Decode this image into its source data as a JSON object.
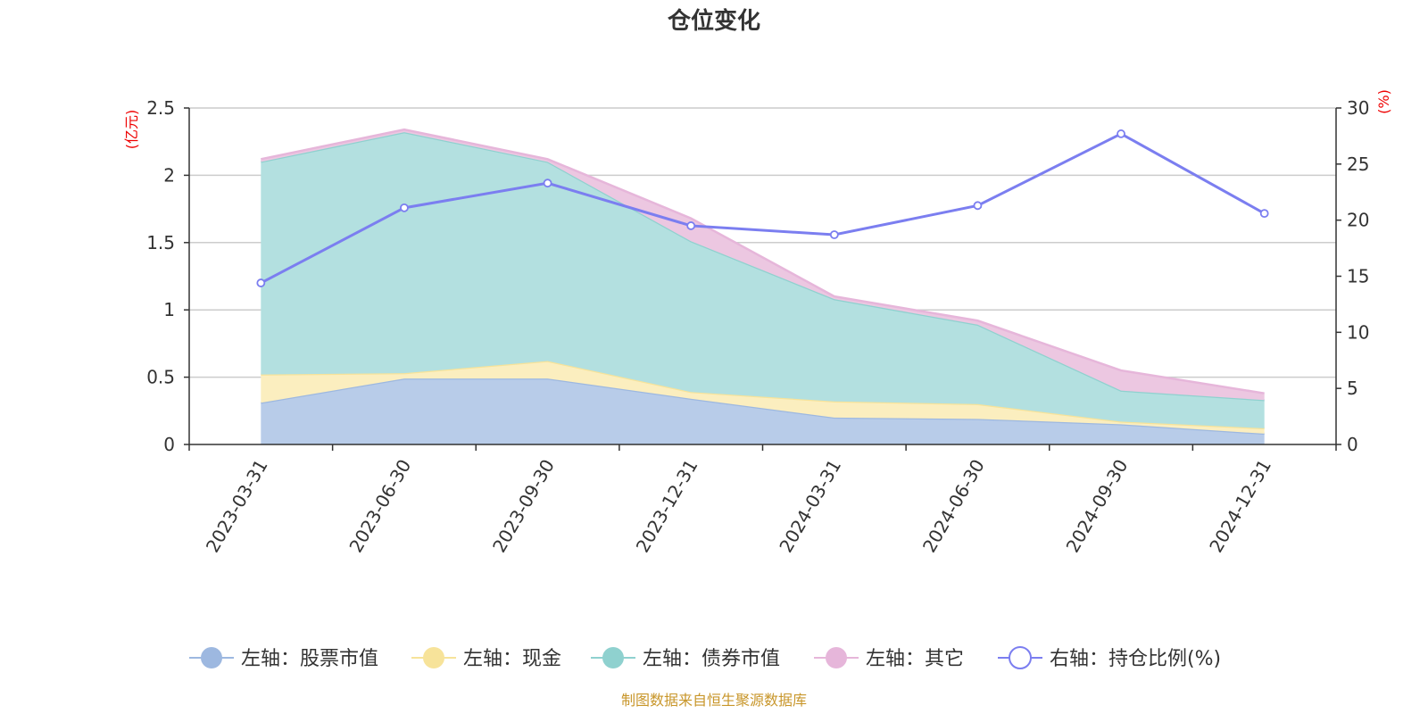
{
  "chart_data": {
    "type": "area",
    "title": "仓位变化",
    "categories": [
      "2023-03-31",
      "2023-06-30",
      "2023-09-30",
      "2023-12-31",
      "2024-03-31",
      "2024-06-30",
      "2024-09-30",
      "2024-12-31"
    ],
    "left_axis": {
      "unit": "(亿元)",
      "ylim": [
        0,
        2.5
      ],
      "ticks": [
        "0",
        "0.5",
        "1",
        "1.5",
        "2",
        "2.5"
      ],
      "tick_values": [
        0,
        0.5,
        1,
        1.5,
        2,
        2.5
      ]
    },
    "right_axis": {
      "unit": "(%)",
      "ylim": [
        0,
        30
      ],
      "ticks": [
        "0",
        "5",
        "10",
        "15",
        "20",
        "25",
        "30"
      ],
      "tick_values": [
        0,
        5,
        10,
        15,
        20,
        25,
        30
      ]
    },
    "series": [
      {
        "name": "左轴：股票市值",
        "axis": "left",
        "stacked": true,
        "color": "#9db8e0",
        "fill": "#b8cce9",
        "values": [
          0.31,
          0.49,
          0.49,
          0.34,
          0.2,
          0.19,
          0.15,
          0.08
        ]
      },
      {
        "name": "左轴：现金",
        "axis": "left",
        "stacked": true,
        "color": "#f7e39a",
        "fill": "#fbeebf",
        "values": [
          0.21,
          0.04,
          0.13,
          0.05,
          0.12,
          0.11,
          0.02,
          0.04
        ]
      },
      {
        "name": "左轴：债券市值",
        "axis": "left",
        "stacked": true,
        "color": "#8fd1cf",
        "fill": "#b3e0e0",
        "values": [
          1.58,
          1.79,
          1.48,
          1.12,
          0.76,
          0.59,
          0.23,
          0.21
        ]
      },
      {
        "name": "左轴：其它",
        "axis": "left",
        "stacked": true,
        "color": "#e6b6da",
        "fill": "#ecc7e1",
        "values": [
          0.02,
          0.02,
          0.02,
          0.17,
          0.02,
          0.03,
          0.15,
          0.05
        ]
      },
      {
        "name": "右轴：持仓比例(%)",
        "axis": "right",
        "stacked": false,
        "type": "line",
        "color": "#7b7ef0",
        "values": [
          14.4,
          21.1,
          23.3,
          19.5,
          18.7,
          21.3,
          27.7,
          20.6
        ]
      }
    ]
  },
  "footer": {
    "source": "制图数据来自恒生聚源数据库"
  }
}
